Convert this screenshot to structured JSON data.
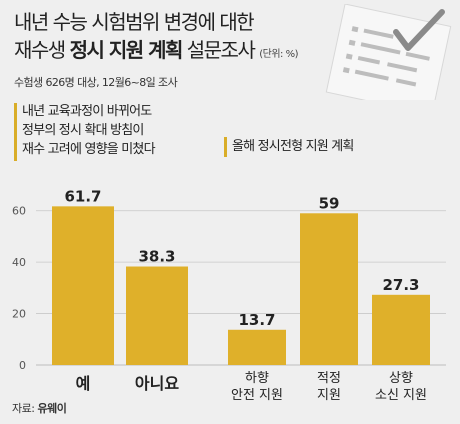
{
  "header": {
    "title_line1": "내년 수능 시험범위 변경에 대한",
    "title_line2_prefix": "재수생",
    "title_line2_bold": "정시 지원 계획",
    "title_line2_suffix": "설문조사",
    "unit": "(단위: %)",
    "subtitle": "수험생 626명 대상, 12월6~8일 조사",
    "checklist_icon": "checklist-paper-icon"
  },
  "colors": {
    "bar": "#dfb02a",
    "background": "#efefef",
    "gridline": "#c8c8c8",
    "accent_marker": "#d9ad28"
  },
  "source": {
    "label": "자료:",
    "name": "유웨이"
  },
  "chart_data": [
    {
      "type": "bar",
      "title_lines": [
        "내년 교육과정이 바뀌어도",
        "정부의 정시 확대 방침이",
        "재수 고려에 영향을 미쳤다"
      ],
      "categories": [
        "예",
        "아니요"
      ],
      "values": [
        61.7,
        38.3
      ],
      "value_labels": [
        "61.7",
        "38.3"
      ],
      "ylim": [
        0,
        70
      ],
      "yticks": [
        0,
        20,
        40,
        60
      ],
      "ytick_labels": [
        "0",
        "20",
        "40",
        "60"
      ],
      "grid": true
    },
    {
      "type": "bar",
      "title": "올해 정시전형 지원 계획",
      "categories": [
        [
          "하향",
          "안전 지원"
        ],
        [
          "적정",
          "지원"
        ],
        [
          "상향",
          "소신 지원"
        ]
      ],
      "values": [
        13.7,
        59,
        27.3
      ],
      "value_labels": [
        "13.7",
        "59",
        "27.3"
      ],
      "ylim": [
        0,
        70
      ],
      "grid": true
    }
  ]
}
